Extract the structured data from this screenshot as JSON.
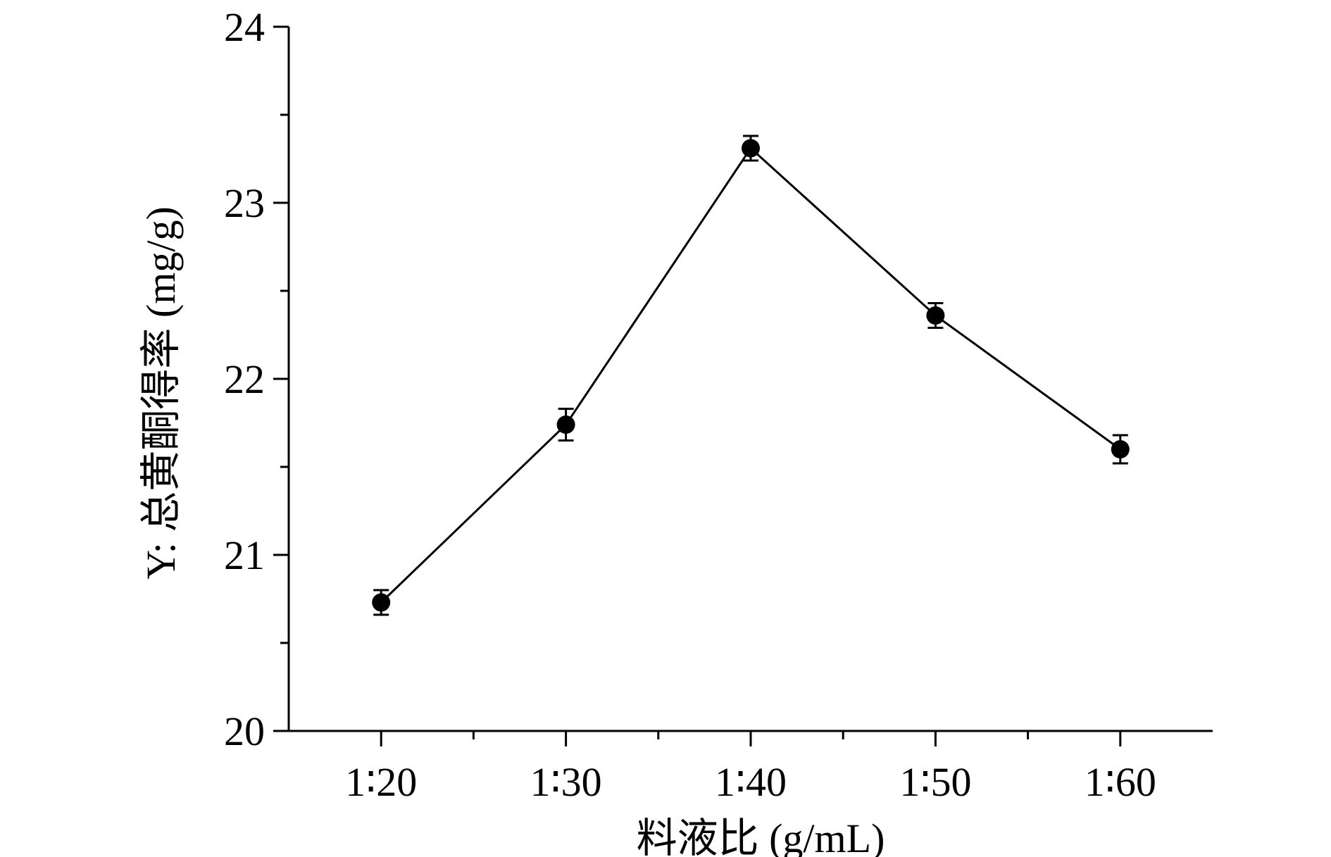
{
  "chart_data": {
    "type": "line",
    "title": "",
    "xlabel": "料液比 (g/mL)",
    "ylabel": "Y: 总黄酮得率 (mg/g)",
    "categories": [
      "1∶20",
      "1∶30",
      "1∶40",
      "1∶50",
      "1∶60"
    ],
    "series": [
      {
        "values": [
          20.73,
          21.74,
          23.31,
          22.36,
          21.6
        ],
        "errors": [
          0.07,
          0.09,
          0.07,
          0.07,
          0.08
        ]
      }
    ],
    "ylim": [
      20,
      24
    ],
    "yticks": [
      20,
      21,
      22,
      23,
      24
    ],
    "yminor_step": 0.5,
    "grid": false,
    "legend": "none",
    "colors": {
      "line": "#000000",
      "marker": "#000000",
      "axis": "#000000"
    }
  }
}
